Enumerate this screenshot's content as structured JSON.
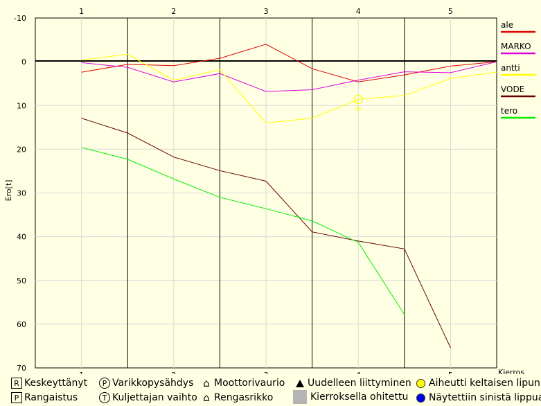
{
  "chart_data": {
    "type": "line",
    "ylabel": "Ero[t]",
    "xlabel": "Kierros",
    "x_ticks": [
      "1",
      "2",
      "3",
      "4",
      "5"
    ],
    "y_ticks": [
      "-10",
      "0",
      "10",
      "20",
      "30",
      "40",
      "50",
      "60",
      "70"
    ],
    "ylim": [
      -10,
      70
    ],
    "y_inverted": true,
    "xlim": [
      0.5,
      5.5
    ],
    "lap_boundaries": [
      1.5,
      2.5,
      3.5,
      4.5
    ],
    "series": [
      {
        "name": "ale",
        "color": "#dd0000",
        "x": [
          1,
          1.5,
          2,
          2.5,
          3,
          3.5,
          4,
          4.5,
          5,
          5.5
        ],
        "y": [
          2.4,
          0.6,
          0.9,
          -0.8,
          -4.0,
          1.6,
          4.6,
          3.0,
          1.0,
          0.0
        ]
      },
      {
        "name": "MARKO",
        "color": "#dd00dd",
        "x": [
          1,
          1.5,
          2,
          2.5,
          3,
          3.5,
          4,
          4.5,
          5,
          5.5
        ],
        "y": [
          0.2,
          1.3,
          4.6,
          2.7,
          6.8,
          6.4,
          4.2,
          2.3,
          2.5,
          0.0
        ]
      },
      {
        "name": "antti",
        "color": "#ffff00",
        "x": [
          1,
          1.5,
          2,
          2.5,
          3,
          3.5,
          4,
          4.5,
          5,
          5.5
        ],
        "y": [
          -0.4,
          -1.7,
          4.2,
          1.8,
          14.0,
          12.9,
          8.6,
          7.7,
          3.8,
          2.4
        ]
      },
      {
        "name": "VODE",
        "color": "#660000",
        "x": [
          1,
          1.5,
          2,
          2.5,
          3,
          3.5,
          4,
          4.5,
          5
        ],
        "y": [
          12.9,
          16.3,
          21.8,
          24.9,
          27.3,
          38.9,
          41.0,
          42.8,
          65.4
        ]
      },
      {
        "name": "tero",
        "color": "#00ee00",
        "x": [
          1,
          1.5,
          2,
          2.5,
          3,
          3.5,
          4,
          4.5
        ],
        "y": [
          19.6,
          22.3,
          26.8,
          31.0,
          33.6,
          36.4,
          41.3,
          57.8
        ]
      }
    ],
    "annotations": [
      {
        "type": "yellow-flag",
        "series": "antti",
        "x": 4,
        "y": 8.6,
        "text": "ilp"
      }
    ]
  },
  "legend_items": [
    {
      "icon": "R",
      "label": "Keskeyttänyt"
    },
    {
      "icon": "P",
      "label": "Varikkopysähdys"
    },
    {
      "icon": "E",
      "label": "Moottorivaurio"
    },
    {
      "icon": "triangle",
      "label": "Uudelleen liittyminen"
    },
    {
      "icon": "yellow-dot",
      "label": "Aiheutti keltaisen lipun"
    },
    {
      "icon": "P",
      "label": "Rangaistus"
    },
    {
      "icon": "T",
      "label": "Kuljettajan vaihto"
    },
    {
      "icon": "house",
      "label": "Rengasrikko"
    },
    {
      "icon": "grey-box",
      "label": "Kierroksella ohitettu"
    },
    {
      "icon": "blue-dot",
      "label": "Näytettiin sinistä lippua"
    }
  ]
}
